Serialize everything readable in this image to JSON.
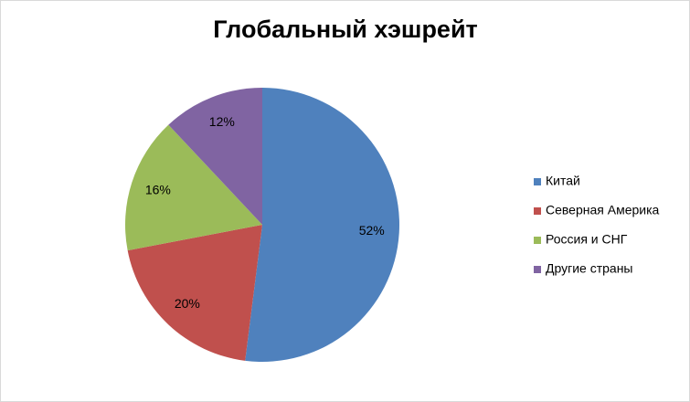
{
  "chart_data": {
    "type": "pie",
    "title": "Глобальный хэшрейт",
    "categories": [
      "Китай",
      "Северная Америка",
      "Россия и СНГ",
      "Другие страны"
    ],
    "values": [
      52,
      20,
      16,
      12
    ],
    "value_labels": [
      "52%",
      "20%",
      "16%",
      "12%"
    ],
    "colors": [
      "#4f81bd",
      "#c0504d",
      "#9bbb59",
      "#8064a2"
    ],
    "legend": "right"
  }
}
